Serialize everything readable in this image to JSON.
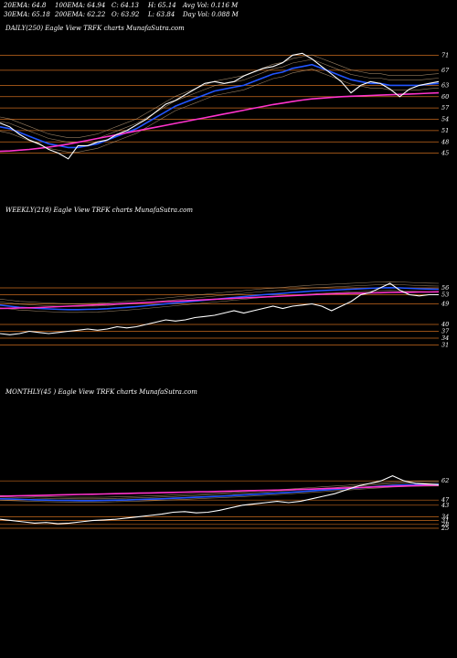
{
  "header": {
    "row1": [
      {
        "label": "20EMA: 64.8"
      },
      {
        "label": "100EMA: 64.94"
      },
      {
        "label": "C: 64.13"
      },
      {
        "label": "H: 65.14"
      },
      {
        "label": "Avg Vol: 0.116  M"
      }
    ],
    "row2": [
      {
        "label": "30EMA: 65.18"
      },
      {
        "label": "200EMA: 62.22"
      },
      {
        "label": "O: 63.92"
      },
      {
        "label": "L: 63.84"
      },
      {
        "label": "Day Vol: 0.088  M"
      }
    ]
  },
  "colors": {
    "background": "#000000",
    "price": "#ffffff",
    "ema_blue": "#2255ff",
    "ema_magenta": "#ff33cc",
    "grid_orange": "#c86a1e",
    "ema_tan": "#d6b48a"
  },
  "chart_data": [
    {
      "type": "line",
      "panel": "daily",
      "title": "DAILY(250) Eagle   View  TRFK charts MunafaSutra.com",
      "y_ticks": [
        71,
        67,
        63,
        60,
        57,
        54,
        51,
        48,
        45
      ],
      "ylim": [
        42,
        74
      ],
      "series": [
        {
          "role": "price",
          "values": [
            53,
            52,
            50,
            48.5,
            47.5,
            46,
            45,
            43.5,
            47,
            47,
            48,
            48.5,
            50,
            51,
            52.5,
            54,
            56,
            58,
            59,
            60.5,
            62,
            63.5,
            64,
            63.5,
            64,
            65.5,
            66.5,
            67.5,
            68,
            69,
            71,
            71.5,
            70,
            68,
            66,
            64,
            61,
            63,
            64,
            63.5,
            62,
            60,
            62,
            63,
            63.5,
            64
          ]
        },
        {
          "role": "ema",
          "color": "blue",
          "values": [
            52,
            51.5,
            50.5,
            49.5,
            48.5,
            47.5,
            47,
            46.5,
            46.5,
            47,
            47.5,
            48.5,
            49.5,
            50.5,
            51.5,
            53,
            54.5,
            56,
            57.5,
            58.5,
            59.5,
            60.5,
            61.5,
            62,
            62.5,
            63,
            64,
            65,
            66,
            66.5,
            67.5,
            68,
            68.5,
            67.5,
            66.5,
            65.5,
            64.5,
            64,
            63.5,
            63.5,
            63,
            63,
            63,
            63,
            63.3,
            63.5
          ]
        },
        {
          "role": "ema",
          "color": "magenta",
          "values": [
            45.5,
            45.6,
            45.8,
            46,
            46.3,
            46.6,
            47,
            47.4,
            47.9,
            48.4,
            48.9,
            49.4,
            49.9,
            50.4,
            50.9,
            51.4,
            51.9,
            52.4,
            52.9,
            53.4,
            53.9,
            54.4,
            54.9,
            55.4,
            55.9,
            56.4,
            56.9,
            57.4,
            57.9,
            58.3,
            58.7,
            59.1,
            59.4,
            59.6,
            59.8,
            60,
            60.1,
            60.2,
            60.3,
            60.4,
            60.5,
            60.6,
            60.7,
            60.8,
            60.9,
            61
          ]
        }
      ]
    },
    {
      "type": "line",
      "panel": "weekly",
      "title": "WEEKLY(218) Eagle   View  TRFK charts MunafaSutra.com",
      "y_ticks": [
        56,
        53,
        49,
        40,
        37,
        34,
        31
      ],
      "ylim": [
        28,
        60
      ],
      "series": [
        {
          "role": "price",
          "values": [
            36,
            35.5,
            36,
            37,
            36.5,
            36,
            36.5,
            37,
            37.5,
            38,
            37.5,
            38,
            39,
            38.5,
            39,
            40,
            41,
            42,
            41.5,
            42,
            43,
            43.5,
            44,
            45,
            46,
            45,
            46,
            47,
            48,
            47,
            48,
            48.5,
            49,
            48,
            46,
            48,
            50,
            53,
            54,
            56,
            58,
            55,
            53,
            52.5,
            53,
            53
          ]
        },
        {
          "role": "ema",
          "color": "blue",
          "values": [
            48.5,
            48,
            47.5,
            47.3,
            47,
            46.8,
            46.6,
            46.5,
            46.5,
            46.6,
            46.7,
            46.9,
            47.2,
            47.5,
            47.8,
            48.2,
            48.6,
            49,
            49.4,
            49.8,
            50.2,
            50.6,
            51,
            51.4,
            51.8,
            52.2,
            52.6,
            53,
            53.3,
            53.6,
            54,
            54.3,
            54.6,
            54.8,
            55,
            55.2,
            55.4,
            55.6,
            55.8,
            56,
            56.1,
            56,
            55.8,
            55.6,
            55.5,
            55.4
          ]
        },
        {
          "role": "ema",
          "color": "magenta",
          "values": [
            47,
            47.1,
            47.2,
            47.3,
            47.4,
            47.6,
            47.8,
            48,
            48.2,
            48.4,
            48.6,
            48.8,
            49,
            49.2,
            49.4,
            49.6,
            49.8,
            50,
            50.2,
            50.4,
            50.6,
            50.8,
            51,
            51.2,
            51.4,
            51.6,
            51.8,
            52,
            52.2,
            52.4,
            52.6,
            52.8,
            53,
            53.2,
            53.4,
            53.5,
            53.6,
            53.7,
            53.8,
            53.9,
            54,
            54.1,
            54.1,
            54.2,
            54.2,
            54.3
          ]
        }
      ]
    },
    {
      "type": "line",
      "panel": "monthly",
      "title": "MONTHLY(45                    ) Eagle   View  TRFK charts MunafaSutra.com",
      "y_ticks": [
        62,
        47,
        43,
        34,
        31,
        28,
        25
      ],
      "ylim": [
        20,
        70
      ],
      "series": [
        {
          "role": "price",
          "values": [
            32,
            31,
            30,
            29,
            29.5,
            28.5,
            29,
            30,
            31,
            31.5,
            32,
            33,
            34,
            35,
            36,
            37.5,
            38,
            37,
            37.5,
            39,
            41,
            43,
            44,
            45,
            46,
            45,
            46,
            48,
            50,
            52,
            55,
            58,
            60,
            62,
            66,
            62,
            60,
            59.5,
            59
          ]
        },
        {
          "role": "ema",
          "color": "blue",
          "values": [
            48,
            47.8,
            47.5,
            47.2,
            47,
            46.8,
            46.7,
            46.6,
            46.6,
            46.7,
            46.9,
            47.1,
            47.4,
            47.7,
            48,
            48.4,
            48.8,
            49.2,
            49.6,
            50,
            50.4,
            50.9,
            51.4,
            51.9,
            52.5,
            53,
            53.6,
            54.2,
            54.8,
            55.4,
            56,
            56.6,
            57.2,
            57.8,
            58.4,
            58.8,
            59,
            59.1,
            59.2
          ]
        },
        {
          "role": "ema",
          "color": "magenta",
          "values": [
            50,
            50.2,
            50.4,
            50.6,
            50.8,
            51,
            51.2,
            51.4,
            51.6,
            51.8,
            52,
            52.2,
            52.4,
            52.6,
            52.8,
            53,
            53.2,
            53.4,
            53.6,
            53.8,
            54,
            54.2,
            54.4,
            54.6,
            54.8,
            55,
            55.3,
            55.6,
            55.9,
            56.2,
            56.5,
            56.8,
            57.1,
            57.4,
            57.7,
            58,
            58.3,
            58.5,
            58.7
          ]
        }
      ]
    }
  ]
}
